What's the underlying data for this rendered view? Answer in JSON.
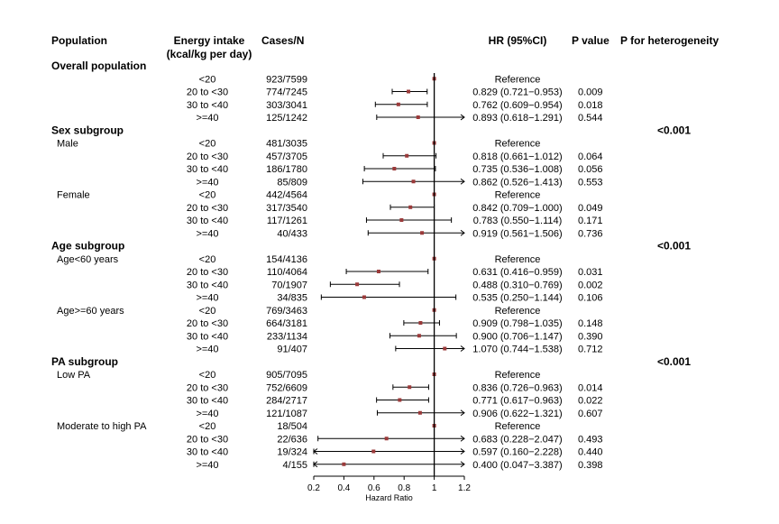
{
  "chart_data": {
    "type": "forest",
    "headers": {
      "population": "Population",
      "energy_intake": "Energy intake",
      "energy_intake_unit": "(kcal/kg per day)",
      "cases": "Cases/N",
      "hr": "HR  (95%CI)",
      "p_value": "P value",
      "p_heterogeneity": "P for heterogeneity"
    },
    "xlabel": "Hazard Ratio",
    "xlim": [
      0.2,
      1.2
    ],
    "ticks": [
      "0.2",
      "0.4",
      "0.6",
      "0.8",
      "1",
      "1.2"
    ],
    "reference_line": 1,
    "rows": [
      {
        "type": "section",
        "label": "Overall population"
      },
      {
        "type": "data",
        "category": "<20",
        "cases": "923/7599",
        "hr_text": "Reference"
      },
      {
        "type": "data",
        "category": "20 to <30",
        "cases": "774/7245",
        "hr_text": "0.829 (0.721−0.953)",
        "p": "0.009",
        "hr": 0.829,
        "lo": 0.721,
        "hi": 0.953
      },
      {
        "type": "data",
        "category": "30 to <40",
        "cases": "303/3041",
        "hr_text": "0.762 (0.609−0.954)",
        "p": "0.018",
        "hr": 0.762,
        "lo": 0.609,
        "hi": 0.954
      },
      {
        "type": "data",
        "category": ">=40",
        "cases": "125/1242",
        "hr_text": "0.893 (0.618−1.291)",
        "p": "0.544",
        "hr": 0.893,
        "lo": 0.618,
        "hi": 1.291
      },
      {
        "type": "section",
        "label": "Sex subgroup",
        "p_het": "<0.001"
      },
      {
        "type": "data",
        "group": "Male",
        "category": "<20",
        "cases": "481/3035",
        "hr_text": "Reference"
      },
      {
        "type": "data",
        "category": "20 to <30",
        "cases": "457/3705",
        "hr_text": "0.818 (0.661−1.012)",
        "p": "0.064",
        "hr": 0.818,
        "lo": 0.661,
        "hi": 1.012
      },
      {
        "type": "data",
        "category": "30 to <40",
        "cases": "186/1780",
        "hr_text": "0.735 (0.536−1.008)",
        "p": "0.056",
        "hr": 0.735,
        "lo": 0.536,
        "hi": 1.008
      },
      {
        "type": "data",
        "category": ">=40",
        "cases": "85/809",
        "hr_text": "0.862 (0.526−1.413)",
        "p": "0.553",
        "hr": 0.862,
        "lo": 0.526,
        "hi": 1.413
      },
      {
        "type": "data",
        "group": "Female",
        "category": "<20",
        "cases": "442/4564",
        "hr_text": "Reference"
      },
      {
        "type": "data",
        "category": "20 to <30",
        "cases": "317/3540",
        "hr_text": "0.842 (0.709−1.000)",
        "p": "0.049",
        "hr": 0.842,
        "lo": 0.709,
        "hi": 1.0
      },
      {
        "type": "data",
        "category": "30 to <40",
        "cases": "117/1261",
        "hr_text": "0.783 (0.550−1.114)",
        "p": "0.171",
        "hr": 0.783,
        "lo": 0.55,
        "hi": 1.114
      },
      {
        "type": "data",
        "category": ">=40",
        "cases": "40/433",
        "hr_text": "0.919 (0.561−1.506)",
        "p": "0.736",
        "hr": 0.919,
        "lo": 0.561,
        "hi": 1.506
      },
      {
        "type": "section",
        "label": "Age subgroup",
        "p_het": "<0.001"
      },
      {
        "type": "data",
        "group": "Age<60 years",
        "category": "<20",
        "cases": "154/4136",
        "hr_text": "Reference"
      },
      {
        "type": "data",
        "category": "20 to <30",
        "cases": "110/4064",
        "hr_text": "0.631 (0.416−0.959)",
        "p": "0.031",
        "hr": 0.631,
        "lo": 0.416,
        "hi": 0.959
      },
      {
        "type": "data",
        "category": "30 to <40",
        "cases": "70/1907",
        "hr_text": "0.488 (0.310−0.769)",
        "p": "0.002",
        "hr": 0.488,
        "lo": 0.31,
        "hi": 0.769
      },
      {
        "type": "data",
        "category": ">=40",
        "cases": "34/835",
        "hr_text": "0.535 (0.250−1.144)",
        "p": "0.106",
        "hr": 0.535,
        "lo": 0.25,
        "hi": 1.144
      },
      {
        "type": "data",
        "group": "Age>=60 years",
        "category": "<20",
        "cases": "769/3463",
        "hr_text": "Reference"
      },
      {
        "type": "data",
        "category": "20 to <30",
        "cases": "664/3181",
        "hr_text": "0.909 (0.798−1.035)",
        "p": "0.148",
        "hr": 0.909,
        "lo": 0.798,
        "hi": 1.035
      },
      {
        "type": "data",
        "category": "30 to <40",
        "cases": "233/1134",
        "hr_text": "0.900 (0.706−1.147)",
        "p": "0.390",
        "hr": 0.9,
        "lo": 0.706,
        "hi": 1.147
      },
      {
        "type": "data",
        "category": ">=40",
        "cases": "91/407",
        "hr_text": "1.070 (0.744−1.538)",
        "p": "0.712",
        "hr": 1.07,
        "lo": 0.744,
        "hi": 1.538
      },
      {
        "type": "section",
        "label": "PA subgroup",
        "p_het": "<0.001"
      },
      {
        "type": "data",
        "group": "Low PA",
        "category": "<20",
        "cases": "905/7095",
        "hr_text": "Reference"
      },
      {
        "type": "data",
        "category": "20 to <30",
        "cases": "752/6609",
        "hr_text": "0.836 (0.726−0.963)",
        "p": "0.014",
        "hr": 0.836,
        "lo": 0.726,
        "hi": 0.963
      },
      {
        "type": "data",
        "category": "30 to <40",
        "cases": "284/2717",
        "hr_text": "0.771 (0.617−0.963)",
        "p": "0.022",
        "hr": 0.771,
        "lo": 0.617,
        "hi": 0.963
      },
      {
        "type": "data",
        "category": ">=40",
        "cases": "121/1087",
        "hr_text": "0.906 (0.622−1.321)",
        "p": "0.607",
        "hr": 0.906,
        "lo": 0.622,
        "hi": 1.321
      },
      {
        "type": "data",
        "group": "Moderate to high PA",
        "category": "<20",
        "cases": "18/504",
        "hr_text": "Reference"
      },
      {
        "type": "data",
        "category": "20 to <30",
        "cases": "22/636",
        "hr_text": "0.683 (0.228−2.047)",
        "p": "0.493",
        "hr": 0.683,
        "lo": 0.228,
        "hi": 2.047
      },
      {
        "type": "data",
        "category": "30 to <40",
        "cases": "19/324",
        "hr_text": "0.597 (0.160−2.228)",
        "p": "0.440",
        "hr": 0.597,
        "lo": 0.16,
        "hi": 2.228
      },
      {
        "type": "data",
        "category": ">=40",
        "cases": "4/155",
        "hr_text": "0.400 (0.047−3.387)",
        "p": "0.398",
        "hr": 0.4,
        "lo": 0.047,
        "hi": 3.387
      }
    ]
  },
  "colors": {
    "point": "#9b3a3a",
    "line": "#000000",
    "text": "#000000"
  }
}
